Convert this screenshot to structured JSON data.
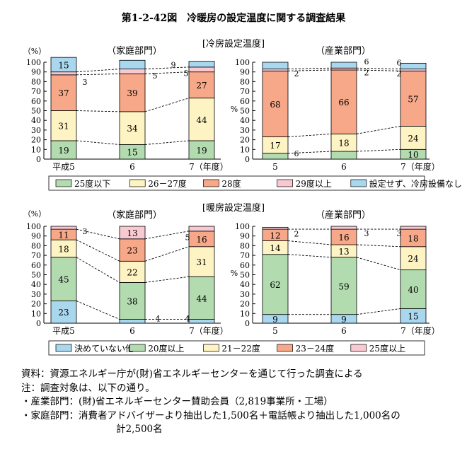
{
  "title": "第1-2-42図　冷暖房の設定温度に関する調査結果",
  "colors": {
    "c25": "#b3dbb0",
    "c26": "#fdf3c3",
    "c28": "#f7a889",
    "c29": "#f9c9d2",
    "none": "#a9d7ee",
    "h_undecided": "#a9d7ee",
    "h_20": "#b3dbb0",
    "h_21": "#fdf3c3",
    "h_23": "#f7a889",
    "h_25": "#f9c9d2"
  },
  "chart_data": [
    {
      "id": "cooling_household",
      "type": "bar",
      "stacked": true,
      "section_label": "[冷房設定温度]",
      "panel_label": "（家庭部門）",
      "y_unit_label": "（%）",
      "ylim": [
        0,
        100
      ],
      "yticks": [
        0,
        10,
        20,
        30,
        40,
        50,
        60,
        70,
        80,
        90,
        100
      ],
      "categories": [
        "平成5",
        "6",
        "7（年度）"
      ],
      "series": [
        {
          "name": "25度以下",
          "color_key": "c25",
          "values": [
            19,
            15,
            19
          ]
        },
        {
          "name": "26－27度",
          "color_key": "c26",
          "values": [
            31,
            34,
            44
          ]
        },
        {
          "name": "28度",
          "color_key": "c28",
          "values": [
            37,
            39,
            27
          ]
        },
        {
          "name": "29度以上",
          "color_key": "c29",
          "values": [
            3,
            5,
            5
          ]
        },
        {
          "name": "設定せず、冷房設備なし",
          "color_key": "none",
          "values": [
            15,
            9,
            6
          ]
        }
      ]
    },
    {
      "id": "cooling_industry",
      "type": "bar",
      "stacked": true,
      "panel_label": "（産業部門）",
      "y_unit_label": "%",
      "ylim": [
        0,
        100
      ],
      "yticks": [
        0,
        10,
        20,
        30,
        40,
        50,
        60,
        70,
        80,
        90,
        100
      ],
      "categories": [
        "5",
        "6",
        "7（年度）"
      ],
      "series": [
        {
          "name": "25度以下",
          "color_key": "c25",
          "values": [
            6,
            8,
            10
          ]
        },
        {
          "name": "26－27度",
          "color_key": "c26",
          "values": [
            17,
            18,
            24
          ]
        },
        {
          "name": "28度",
          "color_key": "c28",
          "values": [
            68,
            66,
            57
          ]
        },
        {
          "name": "29度以上",
          "color_key": "c29",
          "values": [
            2,
            2,
            2
          ]
        },
        {
          "name": "設定せず、冷房設備なし",
          "color_key": "none",
          "values": [
            7,
            6,
            6
          ]
        }
      ]
    },
    {
      "id": "heating_household",
      "type": "bar",
      "stacked": true,
      "section_label": "[暖房設定温度]",
      "panel_label": "（家庭部門）",
      "y_unit_label": "（%）",
      "ylim": [
        0,
        100
      ],
      "yticks": [
        0,
        10,
        20,
        30,
        40,
        50,
        60,
        70,
        80,
        90,
        100
      ],
      "categories": [
        "平成5",
        "6",
        "7（年度）"
      ],
      "series": [
        {
          "name": "決めていない他",
          "color_key": "h_undecided",
          "values": [
            23,
            4,
            4
          ]
        },
        {
          "name": "20度以上",
          "color_key": "h_20",
          "values": [
            45,
            38,
            44
          ]
        },
        {
          "name": "21－22度",
          "color_key": "h_21",
          "values": [
            18,
            22,
            31
          ]
        },
        {
          "name": "23－24度",
          "color_key": "h_23",
          "values": [
            11,
            23,
            16
          ]
        },
        {
          "name": "25度以上",
          "color_key": "h_25",
          "values": [
            3,
            13,
            5
          ]
        }
      ]
    },
    {
      "id": "heating_industry",
      "type": "bar",
      "stacked": true,
      "panel_label": "（産業部門）",
      "y_unit_label": "%",
      "ylim": [
        0,
        100
      ],
      "yticks": [
        0,
        10,
        20,
        30,
        40,
        50,
        60,
        70,
        80,
        90,
        100
      ],
      "categories": [
        "5",
        "6",
        "7（年度）"
      ],
      "series": [
        {
          "name": "決めていない他",
          "color_key": "h_undecided",
          "values": [
            9,
            9,
            15
          ]
        },
        {
          "name": "20度以上",
          "color_key": "h_20",
          "values": [
            62,
            59,
            40
          ]
        },
        {
          "name": "21－22度",
          "color_key": "h_21",
          "values": [
            14,
            13,
            24
          ]
        },
        {
          "name": "23－24度",
          "color_key": "h_23",
          "values": [
            12,
            16,
            18
          ]
        },
        {
          "name": "25度以上",
          "color_key": "h_25",
          "values": [
            2,
            3,
            3
          ]
        }
      ]
    }
  ],
  "legends": {
    "cooling": [
      {
        "label": "25度以下",
        "color_key": "c25"
      },
      {
        "label": "26－27度",
        "color_key": "c26"
      },
      {
        "label": "28度",
        "color_key": "c28"
      },
      {
        "label": "29度以上",
        "color_key": "c29"
      },
      {
        "label": "設定せず、冷房設備なし",
        "color_key": "none"
      }
    ],
    "heating": [
      {
        "label": "決めていない他",
        "color_key": "h_undecided"
      },
      {
        "label": "20度以上",
        "color_key": "h_20"
      },
      {
        "label": "21－22度",
        "color_key": "h_21"
      },
      {
        "label": "23－24度",
        "color_key": "h_23"
      },
      {
        "label": "25度以上",
        "color_key": "h_25"
      }
    ]
  },
  "notes": {
    "source": "資料：資源エネルギー庁が(財)省エネルギーセンターを通じて行った調査による",
    "note": "注：調査対象は、以下の通り。",
    "industry": "・産業部門：(財)省エネルギーセンター賛助会員（2,819事業所・工場）",
    "household": "・家庭部門：消費者アドバイザーより抽出した1,500名＋電話帳より抽出した1,000名の",
    "household_cont": "計2,500名"
  }
}
